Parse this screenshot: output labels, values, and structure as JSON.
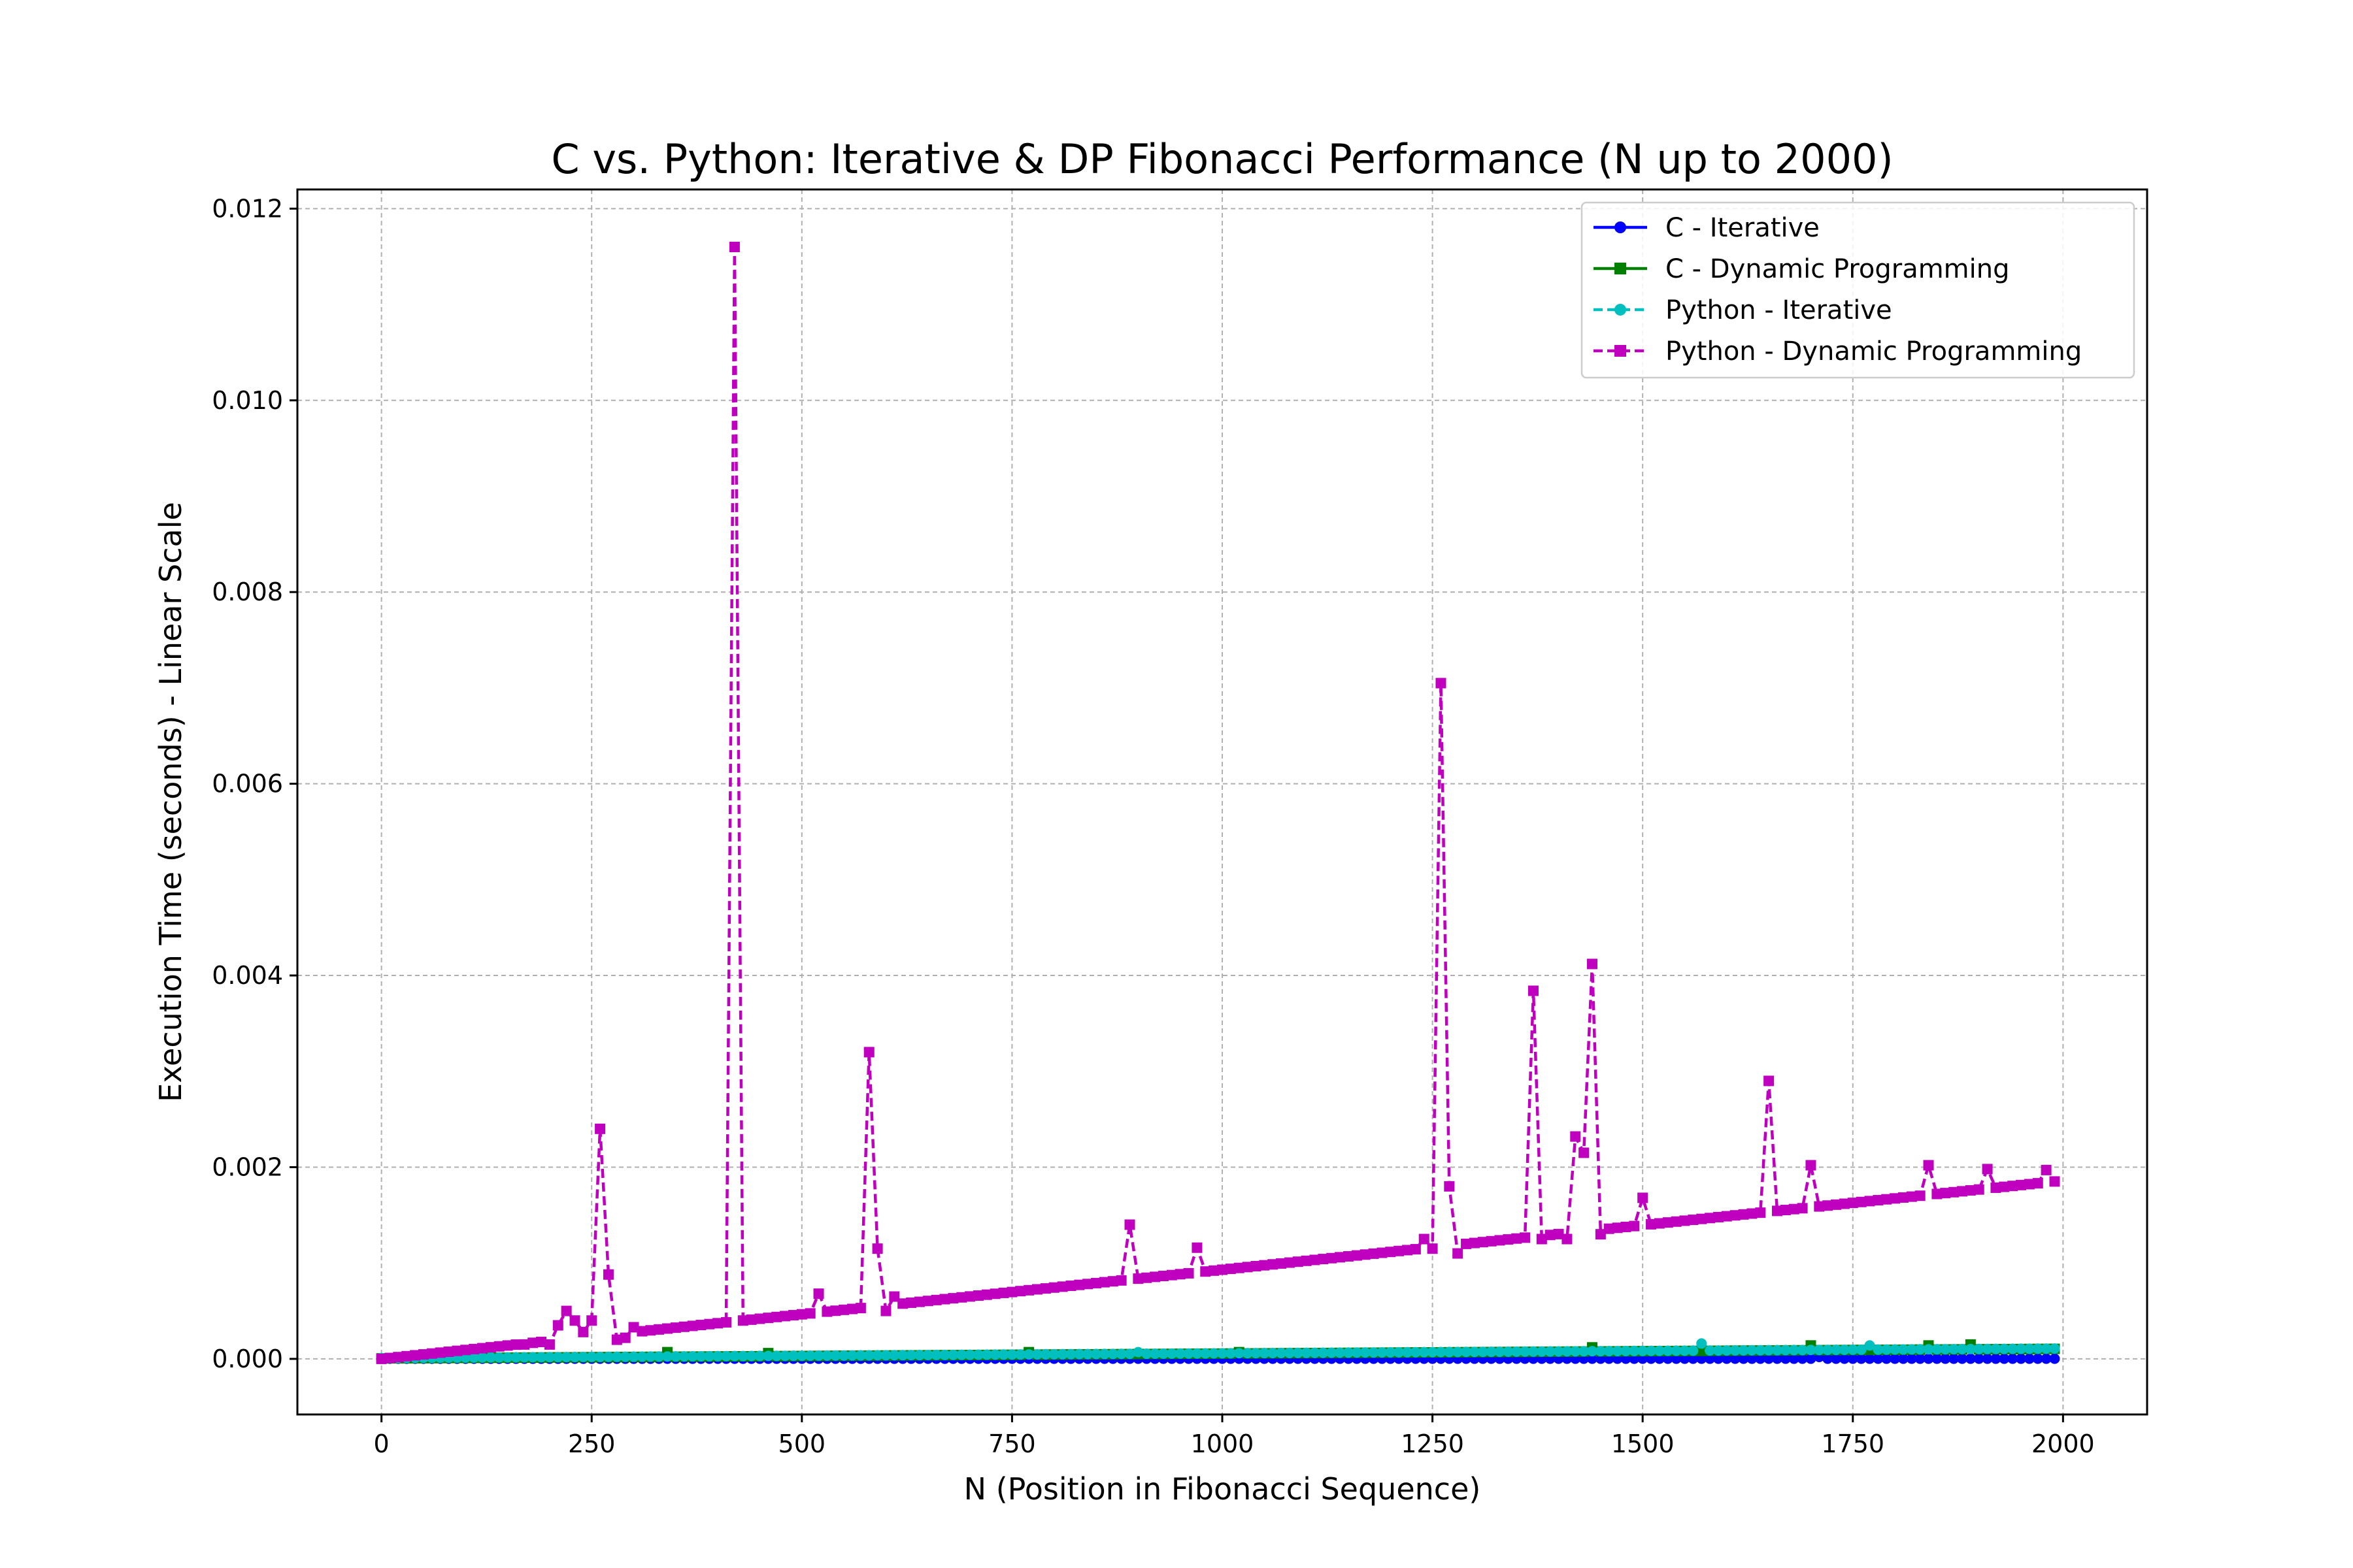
{
  "chart_data": {
    "type": "line",
    "title": "C vs. Python: Iterative & DP Fibonacci Performance (N up to 2000)",
    "xlabel": "N (Position in Fibonacci Sequence)",
    "ylabel": "Execution Time (seconds) - Linear Scale",
    "xlim": [
      -100,
      2100
    ],
    "ylim": [
      -0.00058,
      0.0122
    ],
    "xticks": [
      0,
      250,
      500,
      750,
      1000,
      1250,
      1500,
      1750,
      2000
    ],
    "xtick_labels": [
      "0",
      "250",
      "500",
      "750",
      "1000",
      "1250",
      "1500",
      "1750",
      "2000"
    ],
    "yticks": [
      0.0,
      0.002,
      0.004,
      0.006,
      0.008,
      0.01,
      0.012
    ],
    "ytick_labels": [
      "0.000",
      "0.002",
      "0.004",
      "0.006",
      "0.008",
      "0.010",
      "0.012"
    ],
    "grid": true,
    "legend_position": "top-right",
    "x": {
      "start": 0,
      "step": 10,
      "count": 200
    },
    "series": [
      {
        "name": "C - Iterative",
        "color": "#0000ff",
        "line_style": "solid",
        "marker": "circle",
        "baseline": 2e-06,
        "slope_per_N": 0.0,
        "spikes": [
          [
            1710,
            2e-05
          ]
        ]
      },
      {
        "name": "C - Dynamic Programming",
        "color": "#008000",
        "line_style": "solid",
        "marker": "square",
        "baseline": 5e-06,
        "slope_per_N": 5e-08,
        "spikes": [
          [
            340,
            7e-05
          ],
          [
            460,
            6e-05
          ],
          [
            770,
            7e-05
          ],
          [
            1020,
            7e-05
          ],
          [
            1440,
            0.00012
          ],
          [
            1700,
            0.00014
          ],
          [
            1840,
            0.00014
          ],
          [
            1890,
            0.00015
          ]
        ]
      },
      {
        "name": "Python - Iterative",
        "color": "#00bfbf",
        "line_style": "dashed",
        "marker": "circle",
        "baseline": 8e-06,
        "slope_per_N": 5e-08,
        "spikes": [
          [
            900,
            7e-05
          ],
          [
            1570,
            0.00016
          ],
          [
            1770,
            0.00014
          ]
        ]
      },
      {
        "name": "Python - Dynamic Programming",
        "color": "#bf00bf",
        "line_style": "dashed",
        "marker": "square",
        "baseline": 0.0,
        "slope_per_N": 9.3e-07,
        "spikes": [
          [
            170,
            0.00015
          ],
          [
            200,
            0.00015
          ],
          [
            210,
            0.00035
          ],
          [
            220,
            0.0005
          ],
          [
            230,
            0.0004
          ],
          [
            240,
            0.00028
          ],
          [
            250,
            0.0004
          ],
          [
            260,
            0.0024
          ],
          [
            270,
            0.00088
          ],
          [
            280,
            0.0002
          ],
          [
            290,
            0.00022
          ],
          [
            300,
            0.00033
          ],
          [
            420,
            0.0116
          ],
          [
            520,
            0.00068
          ],
          [
            580,
            0.0032
          ],
          [
            590,
            0.00115
          ],
          [
            600,
            0.0005
          ],
          [
            610,
            0.00065
          ],
          [
            890,
            0.0014
          ],
          [
            970,
            0.00116
          ],
          [
            1240,
            0.00125
          ],
          [
            1250,
            0.00115
          ],
          [
            1260,
            0.00705
          ],
          [
            1270,
            0.0018
          ],
          [
            1280,
            0.0011
          ],
          [
            1370,
            0.00384
          ],
          [
            1380,
            0.00125
          ],
          [
            1410,
            0.00125
          ],
          [
            1420,
            0.00232
          ],
          [
            1430,
            0.00215
          ],
          [
            1440,
            0.00412
          ],
          [
            1450,
            0.0013
          ],
          [
            1500,
            0.00168
          ],
          [
            1650,
            0.0029
          ],
          [
            1700,
            0.00202
          ],
          [
            1840,
            0.00202
          ],
          [
            1910,
            0.00198
          ],
          [
            1980,
            0.00197
          ]
        ]
      }
    ]
  }
}
